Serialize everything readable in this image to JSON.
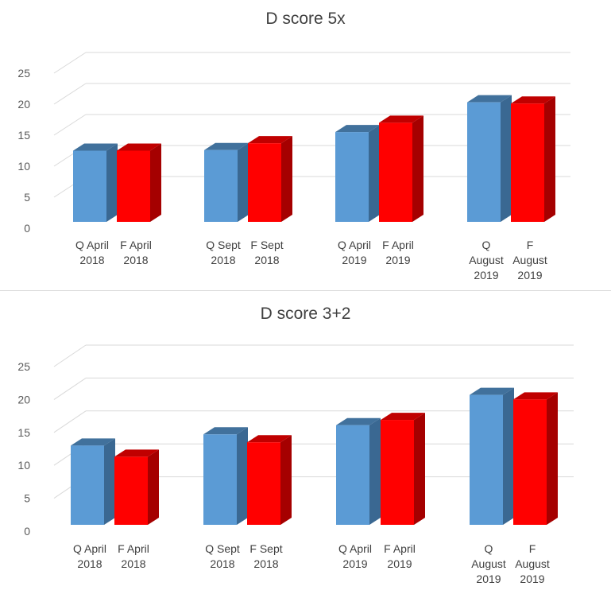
{
  "colors": {
    "q_front": "#5b9bd5",
    "q_top": "#41719c",
    "q_side": "#3a6892",
    "f_front": "#ff0000",
    "f_top": "#c00000",
    "f_side": "#a50000",
    "grid": "#d9d9d9"
  },
  "chart_data": [
    {
      "type": "bar",
      "title": "D score 5x",
      "categories": [
        "Q April\n2018",
        "F April\n2018",
        "Q Sept\n2018",
        "F Sept\n2018",
        "Q April\n2019",
        "F April\n2019",
        "Q\nAugust\n2019",
        "F\nAugust\n2019"
      ],
      "values": [
        12.5,
        12.5,
        12.6,
        13.7,
        15.5,
        17.0,
        20.3,
        20.1
      ],
      "ylim": [
        0,
        25
      ],
      "yticks": [
        0,
        5,
        10,
        15,
        20,
        25
      ],
      "grid": true,
      "style": "3d-columns",
      "bar_colors": [
        "blue",
        "red",
        "blue",
        "red",
        "blue",
        "red",
        "blue",
        "red"
      ]
    },
    {
      "type": "bar",
      "title": "D score 3+2",
      "categories": [
        "Q April\n2018",
        "F April\n2018",
        "Q Sept\n2018",
        "F Sept\n2018",
        "Q April\n2019",
        "F April\n2019",
        "Q\nAugust\n2019",
        "F\nAugust\n2019"
      ],
      "values": [
        13.0,
        11.3,
        14.7,
        13.5,
        16.1,
        16.9,
        20.7,
        20.0
      ],
      "ylim": [
        0,
        25
      ],
      "yticks": [
        0,
        5,
        10,
        15,
        20,
        25
      ],
      "grid": true,
      "style": "3d-columns",
      "bar_colors": [
        "blue",
        "red",
        "blue",
        "red",
        "blue",
        "red",
        "blue",
        "red"
      ]
    }
  ]
}
